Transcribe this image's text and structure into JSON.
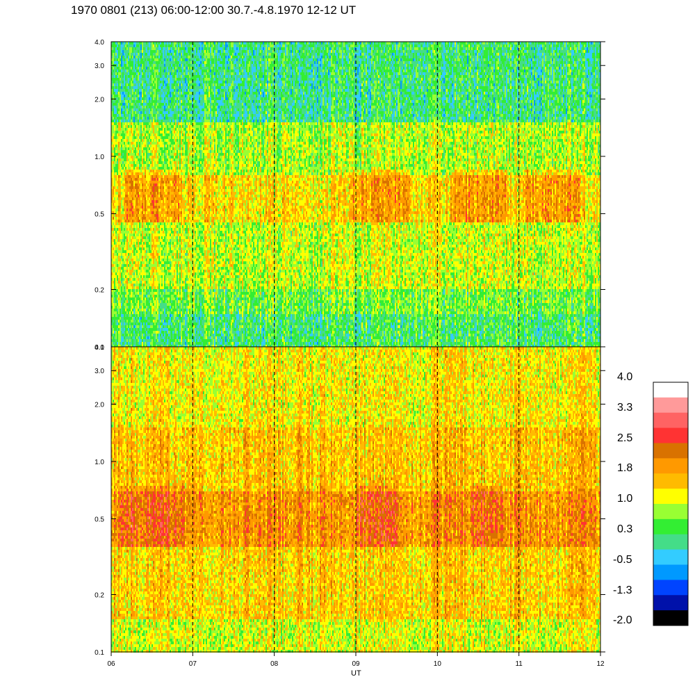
{
  "title": "1970 0801 (213) 06:00-12:00 30.7.-4.8.1970  12-12 UT",
  "chart_data": [
    {
      "type": "heatmap",
      "panel": "upper",
      "x_range": [
        6,
        12
      ],
      "y_range": [
        0.1,
        4.0
      ],
      "y_scale": "log",
      "x_ticks": [
        6,
        7,
        8,
        9,
        10,
        11,
        12
      ],
      "y_ticks": [
        "0.1",
        "0.2",
        "0.5",
        "1.0",
        "2.0",
        "3.0",
        "4.0"
      ],
      "dominant_levels_by_frequency": [
        {
          "freq_range": [
            0.1,
            0.15
          ],
          "value": 0.3
        },
        {
          "freq_range": [
            0.15,
            0.2
          ],
          "value": 0.6
        },
        {
          "freq_range": [
            0.2,
            0.45
          ],
          "value": 1.0
        },
        {
          "freq_range": [
            0.45,
            0.8
          ],
          "value": 1.4
        },
        {
          "freq_range": [
            0.8,
            1.5
          ],
          "value": 0.9
        },
        {
          "freq_range": [
            1.5,
            4.0
          ],
          "value": 0.2
        }
      ],
      "hour_markers": [
        7,
        8,
        9,
        10,
        11
      ]
    },
    {
      "type": "heatmap",
      "panel": "lower",
      "x_range": [
        6,
        12
      ],
      "y_range": [
        0.1,
        4.0
      ],
      "y_scale": "log",
      "x_ticks": [
        "06",
        "07",
        "08",
        "09",
        "10",
        "11",
        "12"
      ],
      "y_ticks": [
        "0.1",
        "0.2",
        "0.5",
        "1.0",
        "2.0",
        "3.0",
        "4.0"
      ],
      "xlabel": "UT",
      "dominant_levels_by_frequency": [
        {
          "freq_range": [
            0.1,
            0.15
          ],
          "value": 1.1
        },
        {
          "freq_range": [
            0.15,
            0.35
          ],
          "value": 1.5
        },
        {
          "freq_range": [
            0.35,
            0.7
          ],
          "value": 2.0
        },
        {
          "freq_range": [
            0.7,
            1.5
          ],
          "value": 1.6
        },
        {
          "freq_range": [
            1.5,
            4.0
          ],
          "value": 1.3
        }
      ],
      "hour_markers": [
        7,
        8,
        9,
        10,
        11
      ]
    }
  ],
  "colorbar": {
    "labels": [
      "4.0",
      "3.3",
      "2.5",
      "1.8",
      "1.0",
      "0.3",
      "-0.5",
      "-1.3",
      "-2.0"
    ],
    "colors": [
      "#ffffff",
      "#ff9a9a",
      "#ff6363",
      "#ff3333",
      "#d97200",
      "#ff9900",
      "#ffbb00",
      "#ffff00",
      "#99ff33",
      "#33ee33",
      "#44dd88",
      "#33ccff",
      "#0099ff",
      "#0044ff",
      "#0011aa",
      "#000000"
    ]
  }
}
